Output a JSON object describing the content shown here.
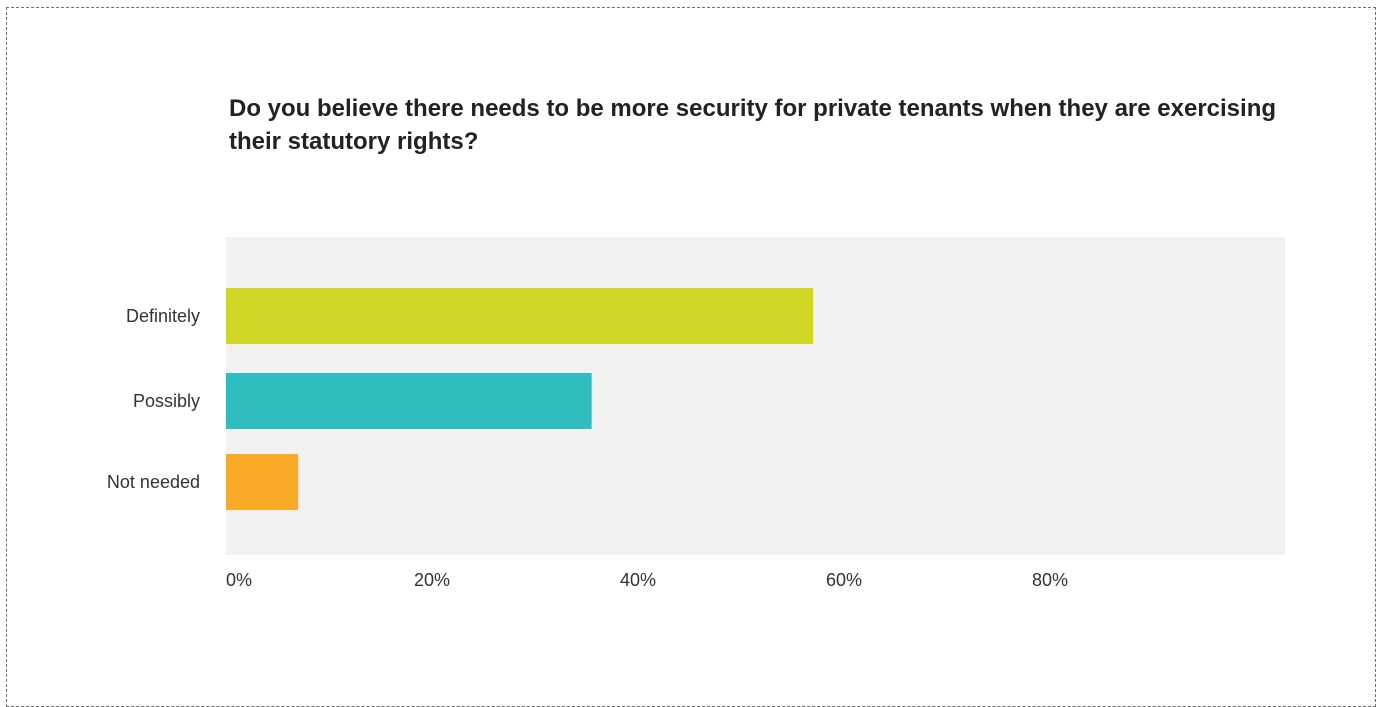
{
  "chart_data": {
    "type": "bar",
    "orientation": "horizontal",
    "title": "Do you believe there needs to be more security for private tenants when they are exercising their statutory rights?",
    "categories": [
      "Definitely",
      "Possibly",
      "Not  needed"
    ],
    "values": [
      57,
      35.5,
      7
    ],
    "colors": [
      "#cfd626",
      "#2fbdbf",
      "#f8a925"
    ],
    "xlim": [
      0,
      103
    ],
    "xticks": [
      0,
      20,
      40,
      60,
      80
    ],
    "xtick_labels": [
      "0%",
      "20%",
      "40%",
      "60%",
      "80%"
    ],
    "plot_background": "#f0f1f0",
    "grid": false,
    "legend": "none"
  }
}
